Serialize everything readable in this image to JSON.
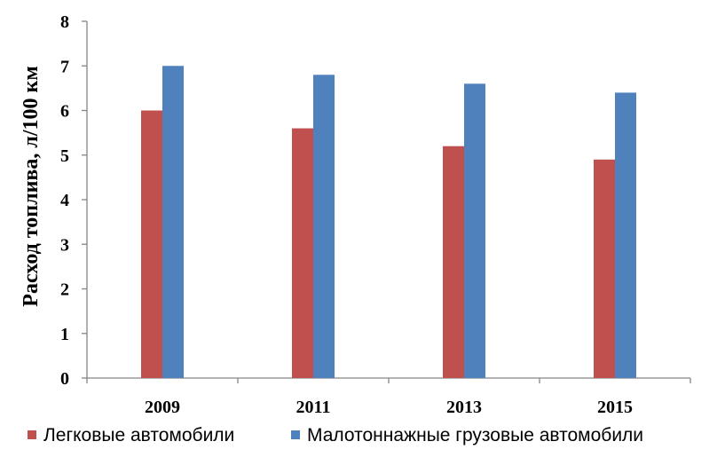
{
  "chart_data": {
    "type": "bar",
    "title": "",
    "xlabel": "",
    "ylabel": "Расход топлива, л/100 км",
    "categories": [
      "2009",
      "2011",
      "2013",
      "2015"
    ],
    "series": [
      {
        "name": "Легковые автомобили",
        "color": "#C0504D",
        "values": [
          6.0,
          5.6,
          5.2,
          4.9
        ]
      },
      {
        "name": "Малотоннажные грузовые автомобили",
        "color": "#4F81BD",
        "values": [
          7.0,
          6.8,
          6.6,
          6.4
        ]
      }
    ],
    "ylim": [
      0,
      8
    ],
    "yticks": [
      0,
      1,
      2,
      3,
      4,
      5,
      6,
      7,
      8
    ],
    "grid": false,
    "legend": "bottom"
  }
}
